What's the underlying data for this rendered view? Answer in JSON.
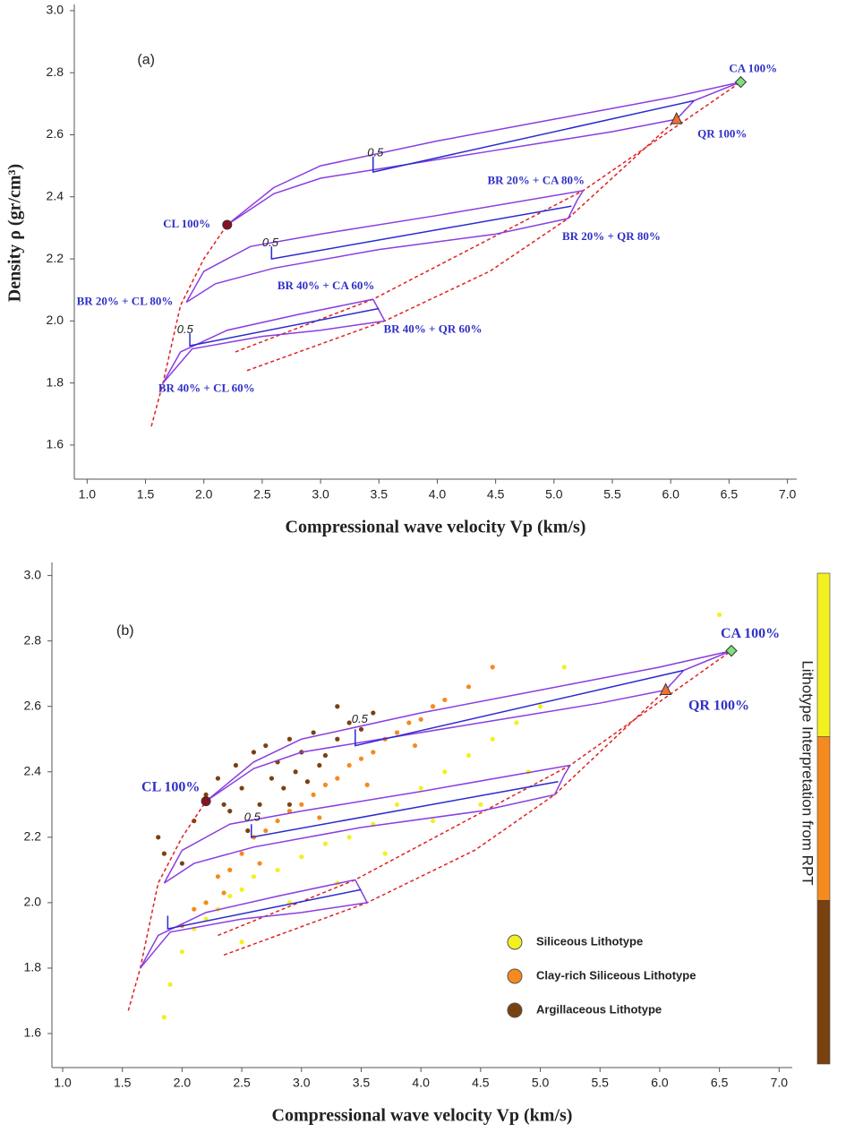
{
  "chart_data": [
    {
      "type": "line",
      "panel_label": "(a)",
      "x_label": "Compressional wave velocity Vp (km/s)",
      "y_label": "Density ρ (gr/cm³)",
      "xlim": [
        0.89,
        7.08
      ],
      "ylim": [
        1.49,
        3.02
      ],
      "xticks": [
        {
          "value": 1,
          "label": "1.0"
        },
        1.5,
        {
          "value": 2,
          "label": "2.0"
        },
        2.5,
        {
          "value": 3,
          "label": "3.0"
        },
        3.5,
        {
          "value": 4,
          "label": "4.0"
        },
        4.5,
        {
          "value": 5,
          "label": "5.0"
        },
        5.5,
        {
          "value": 6,
          "label": "6.0"
        },
        6.5,
        {
          "value": 7,
          "label": "7.0"
        }
      ],
      "yticks": [
        1.6,
        1.8,
        {
          "value": 2,
          "label": "2.0"
        },
        2.2,
        2.4,
        2.6,
        2.8,
        {
          "value": 3,
          "label": "3.0"
        }
      ],
      "curves": [
        {
          "color": "#e02020",
          "style": "dashed",
          "x": [
            1.55,
            1.65,
            1.8,
            2.0,
            2.2
          ],
          "y": [
            1.66,
            1.8,
            2.05,
            2.2,
            2.31
          ]
        },
        {
          "color": "#e02020",
          "style": "dashed",
          "x": [
            2.27,
            3.45,
            5.25,
            6.6
          ],
          "y": [
            1.9,
            2.07,
            2.42,
            2.77
          ]
        },
        {
          "color": "#e02020",
          "style": "dashed",
          "x": [
            2.37,
            3.55,
            4.45,
            5.12,
            6.05
          ],
          "y": [
            1.84,
            2.0,
            2.16,
            2.33,
            2.65
          ]
        },
        {
          "color": "#8a3ee0",
          "style": "solid",
          "x": [
            2.2,
            2.6,
            3.0,
            4.0,
            5.0,
            6.0,
            6.6
          ],
          "y": [
            2.31,
            2.43,
            2.5,
            2.58,
            2.65,
            2.72,
            2.77
          ]
        },
        {
          "color": "#8a3ee0",
          "style": "solid",
          "x": [
            2.2,
            2.6,
            3.0,
            3.5,
            4.5,
            5.5,
            6.05
          ],
          "y": [
            2.31,
            2.41,
            2.46,
            2.49,
            2.55,
            2.61,
            2.65
          ]
        },
        {
          "color": "#8a3ee0",
          "style": "solid",
          "x": [
            6.05,
            6.2,
            6.6
          ],
          "y": [
            2.65,
            2.71,
            2.77
          ]
        },
        {
          "color": "#2a2ad0",
          "style": "solid",
          "x": [
            3.45,
            3.45,
            6.2
          ],
          "y": [
            2.53,
            2.48,
            2.71
          ]
        },
        {
          "color": "#8a3ee0",
          "style": "solid",
          "x": [
            1.85,
            2.0,
            2.4,
            3.0,
            4.0,
            5.25
          ],
          "y": [
            2.06,
            2.16,
            2.24,
            2.28,
            2.34,
            2.42
          ]
        },
        {
          "color": "#8a3ee0",
          "style": "solid",
          "x": [
            1.85,
            2.1,
            2.6,
            3.5,
            4.5,
            5.12
          ],
          "y": [
            2.06,
            2.12,
            2.17,
            2.23,
            2.28,
            2.33
          ]
        },
        {
          "color": "#8a3ee0",
          "style": "solid",
          "x": [
            5.12,
            5.2,
            5.25
          ],
          "y": [
            2.33,
            2.39,
            2.42
          ]
        },
        {
          "color": "#2a2ad0",
          "style": "solid",
          "x": [
            2.58,
            2.58,
            5.15
          ],
          "y": [
            2.24,
            2.2,
            2.37
          ]
        },
        {
          "color": "#8a3ee0",
          "style": "solid",
          "x": [
            1.65,
            1.8,
            2.2,
            2.8,
            3.45
          ],
          "y": [
            1.8,
            1.9,
            1.97,
            2.02,
            2.07
          ]
        },
        {
          "color": "#8a3ee0",
          "style": "solid",
          "x": [
            1.65,
            1.9,
            2.5,
            3.0,
            3.55
          ],
          "y": [
            1.8,
            1.91,
            1.95,
            1.97,
            2.0
          ]
        },
        {
          "color": "#8a3ee0",
          "style": "solid",
          "x": [
            3.45,
            3.55
          ],
          "y": [
            2.07,
            2.0
          ]
        },
        {
          "color": "#2a2ad0",
          "style": "solid",
          "x": [
            1.88,
            1.88,
            3.5
          ],
          "y": [
            1.96,
            1.92,
            2.04
          ]
        }
      ],
      "points": [
        {
          "x": 2.2,
          "y": 2.31,
          "color": "#8b1020",
          "shape": "circle"
        },
        {
          "x": 6.6,
          "y": 2.77,
          "color": "#7ee07e",
          "shape": "diamond"
        },
        {
          "x": 6.05,
          "y": 2.65,
          "color": "#f07030",
          "shape": "triangle"
        }
      ],
      "annotations": [
        {
          "text": "(a)",
          "x": 1.43,
          "y": 2.84,
          "style": "panel"
        },
        {
          "text": "CA 100%",
          "x": 6.5,
          "y": 2.81,
          "style": "label"
        },
        {
          "text": "QR 100%",
          "x": 6.23,
          "y": 2.6,
          "style": "label"
        },
        {
          "text": "CL 100%",
          "x": 1.65,
          "y": 2.31,
          "style": "label"
        },
        {
          "text": "BR 20% + CA 80%",
          "x": 4.43,
          "y": 2.45,
          "style": "label"
        },
        {
          "text": "BR 20% + QR 80%",
          "x": 5.07,
          "y": 2.27,
          "style": "label"
        },
        {
          "text": "BR 20% + CL 80%",
          "x": 0.91,
          "y": 2.06,
          "style": "label"
        },
        {
          "text": "BR 40% + CA 60%",
          "x": 2.63,
          "y": 2.11,
          "style": "label"
        },
        {
          "text": "BR 40% + QR 60%",
          "x": 3.54,
          "y": 1.97,
          "style": "label"
        },
        {
          "text": "BR 40% + CL 60%",
          "x": 1.61,
          "y": 1.78,
          "style": "label"
        },
        {
          "text": "0.5",
          "x": 3.4,
          "y": 2.54,
          "style": "tick"
        },
        {
          "text": "0.5",
          "x": 2.5,
          "y": 2.25,
          "style": "tick"
        },
        {
          "text": "0.5",
          "x": 1.77,
          "y": 1.97,
          "style": "tick"
        }
      ]
    },
    {
      "type": "scatter",
      "panel_label": "(b)",
      "x_label": "Compressional wave velocity Vp (km/s)",
      "xlim": [
        0.91,
        7.11
      ],
      "ylim": [
        1.496,
        3.04
      ],
      "xticks": [
        {
          "value": 1,
          "label": "1.0"
        },
        1.5,
        {
          "value": 2,
          "label": "2.0"
        },
        2.5,
        {
          "value": 3,
          "label": "3.0"
        },
        3.5,
        {
          "value": 4,
          "label": "4.0"
        },
        4.5,
        {
          "value": 5,
          "label": "5.0"
        },
        5.5,
        {
          "value": 6,
          "label": "6.0"
        },
        6.5,
        {
          "value": 7,
          "label": "7.0"
        }
      ],
      "yticks": [
        1.6,
        1.8,
        {
          "value": 2,
          "label": "2.0"
        },
        2.2,
        2.4,
        2.6,
        2.8,
        {
          "value": 3,
          "label": "3.0"
        }
      ],
      "legend": "lower right",
      "colorbar": {
        "label": "Lithotype Interpretation from RPT"
      },
      "series": [
        {
          "name": "Siliceous Lithotype",
          "color": "#f2f020",
          "x": [
            1.85,
            1.9,
            2.0,
            2.1,
            2.2,
            2.3,
            2.4,
            2.5,
            2.6,
            2.8,
            3.0,
            3.2,
            3.4,
            3.6,
            3.8,
            4.0,
            4.2,
            4.4,
            4.6,
            4.8,
            5.0,
            5.2,
            2.5,
            2.9,
            3.3,
            3.7,
            4.1,
            4.5,
            4.9,
            6.5
          ],
          "values": [
            1.65,
            1.75,
            1.85,
            1.92,
            1.95,
            1.98,
            2.02,
            2.04,
            2.08,
            2.1,
            2.14,
            2.18,
            2.2,
            2.24,
            2.3,
            2.35,
            2.4,
            2.45,
            2.5,
            2.55,
            2.6,
            2.72,
            1.88,
            2.0,
            2.06,
            2.15,
            2.25,
            2.3,
            2.4,
            2.88
          ]
        },
        {
          "name": "Clay-rich Siliceous Lithotype",
          "color": "#f58a1f",
          "x": [
            2.0,
            2.1,
            2.2,
            2.3,
            2.4,
            2.5,
            2.6,
            2.7,
            2.8,
            2.9,
            3.0,
            3.1,
            3.2,
            3.3,
            3.4,
            3.5,
            3.6,
            3.7,
            3.8,
            3.9,
            4.0,
            4.1,
            4.2,
            4.4,
            4.6,
            2.35,
            2.65,
            3.15,
            3.55,
            3.95
          ],
          "values": [
            1.93,
            1.98,
            2.0,
            2.08,
            2.1,
            2.15,
            2.2,
            2.22,
            2.25,
            2.28,
            2.3,
            2.33,
            2.36,
            2.38,
            2.42,
            2.44,
            2.46,
            2.5,
            2.52,
            2.55,
            2.56,
            2.6,
            2.62,
            2.66,
            2.72,
            2.03,
            2.12,
            2.26,
            2.36,
            2.48
          ]
        },
        {
          "name": "Argillaceous Lithotype",
          "color": "#7a4110",
          "x": [
            1.8,
            1.85,
            2.0,
            2.1,
            2.2,
            2.3,
            2.35,
            2.45,
            2.5,
            2.6,
            2.65,
            2.7,
            2.75,
            2.8,
            2.85,
            2.9,
            2.95,
            3.0,
            3.05,
            3.1,
            3.2,
            3.3,
            3.4,
            3.5,
            3.6,
            2.4,
            2.55,
            2.9,
            3.15,
            3.3
          ],
          "values": [
            2.2,
            2.15,
            2.12,
            2.25,
            2.33,
            2.38,
            2.3,
            2.42,
            2.35,
            2.46,
            2.3,
            2.48,
            2.38,
            2.43,
            2.35,
            2.5,
            2.4,
            2.46,
            2.37,
            2.52,
            2.45,
            2.5,
            2.55,
            2.53,
            2.58,
            2.28,
            2.22,
            2.3,
            2.42,
            2.6
          ]
        }
      ],
      "curves": [
        {
          "color": "#e02020",
          "style": "dashed",
          "x": [
            1.55,
            1.65,
            1.8,
            2.0,
            2.2
          ],
          "y": [
            1.67,
            1.8,
            2.06,
            2.2,
            2.31
          ]
        },
        {
          "color": "#e02020",
          "style": "dashed",
          "x": [
            2.3,
            3.45,
            5.25,
            6.6
          ],
          "y": [
            1.9,
            2.07,
            2.42,
            2.77
          ]
        },
        {
          "color": "#e02020",
          "style": "dashed",
          "x": [
            2.35,
            3.55,
            4.45,
            5.12,
            6.05
          ],
          "y": [
            1.84,
            2.0,
            2.16,
            2.33,
            2.65
          ]
        },
        {
          "color": "#8a3ee0",
          "style": "solid",
          "x": [
            2.2,
            2.6,
            3.0,
            4.0,
            5.0,
            6.0,
            6.6
          ],
          "y": [
            2.31,
            2.43,
            2.5,
            2.58,
            2.65,
            2.72,
            2.77
          ]
        },
        {
          "color": "#8a3ee0",
          "style": "solid",
          "x": [
            2.2,
            2.6,
            3.0,
            3.5,
            4.5,
            5.5,
            6.05
          ],
          "y": [
            2.31,
            2.41,
            2.46,
            2.49,
            2.55,
            2.61,
            2.65
          ]
        },
        {
          "color": "#8a3ee0",
          "style": "solid",
          "x": [
            6.05,
            6.2,
            6.6
          ],
          "y": [
            2.65,
            2.71,
            2.77
          ]
        },
        {
          "color": "#2a2ad0",
          "style": "solid",
          "x": [
            3.45,
            3.45,
            6.2
          ],
          "y": [
            2.53,
            2.48,
            2.71
          ]
        },
        {
          "color": "#8a3ee0",
          "style": "solid",
          "x": [
            1.85,
            2.0,
            2.4,
            3.0,
            4.0,
            5.25
          ],
          "y": [
            2.06,
            2.16,
            2.24,
            2.28,
            2.34,
            2.42
          ]
        },
        {
          "color": "#8a3ee0",
          "style": "solid",
          "x": [
            1.85,
            2.1,
            2.6,
            3.5,
            4.5,
            5.12
          ],
          "y": [
            2.06,
            2.12,
            2.17,
            2.23,
            2.28,
            2.33
          ]
        },
        {
          "color": "#8a3ee0",
          "style": "solid",
          "x": [
            5.12,
            5.2,
            5.25
          ],
          "y": [
            2.33,
            2.39,
            2.42
          ]
        },
        {
          "color": "#2a2ad0",
          "style": "solid",
          "x": [
            2.58,
            2.58,
            5.15
          ],
          "y": [
            2.24,
            2.2,
            2.37
          ]
        },
        {
          "color": "#8a3ee0",
          "style": "solid",
          "x": [
            1.65,
            1.8,
            2.2,
            2.8,
            3.45
          ],
          "y": [
            1.8,
            1.9,
            1.97,
            2.02,
            2.07
          ]
        },
        {
          "color": "#8a3ee0",
          "style": "solid",
          "x": [
            1.65,
            1.9,
            2.5,
            3.0,
            3.55
          ],
          "y": [
            1.8,
            1.91,
            1.95,
            1.97,
            2.0
          ]
        },
        {
          "color": "#8a3ee0",
          "style": "solid",
          "x": [
            3.45,
            3.55
          ],
          "y": [
            2.07,
            2.0
          ]
        },
        {
          "color": "#2a2ad0",
          "style": "solid",
          "x": [
            1.88,
            1.88,
            3.5
          ],
          "y": [
            1.96,
            1.92,
            2.04
          ]
        }
      ],
      "points": [
        {
          "x": 2.2,
          "y": 2.31,
          "color": "#8b1020",
          "shape": "circle"
        },
        {
          "x": 6.6,
          "y": 2.77,
          "color": "#7ee07e",
          "shape": "diamond"
        },
        {
          "x": 6.05,
          "y": 2.65,
          "color": "#f07030",
          "shape": "triangle"
        }
      ],
      "annotations": [
        {
          "text": "(b)",
          "x": 1.45,
          "y": 2.83,
          "style": "panel"
        },
        {
          "text": "CA 100%",
          "x": 6.51,
          "y": 2.82,
          "style": "big"
        },
        {
          "text": "QR 100%",
          "x": 6.24,
          "y": 2.6,
          "style": "big"
        },
        {
          "text": "CL 100%",
          "x": 1.66,
          "y": 2.35,
          "style": "big"
        },
        {
          "text": "0.5",
          "x": 3.42,
          "y": 2.56,
          "style": "tick"
        },
        {
          "text": "0.5",
          "x": 2.52,
          "y": 2.26,
          "style": "tick"
        }
      ]
    }
  ]
}
